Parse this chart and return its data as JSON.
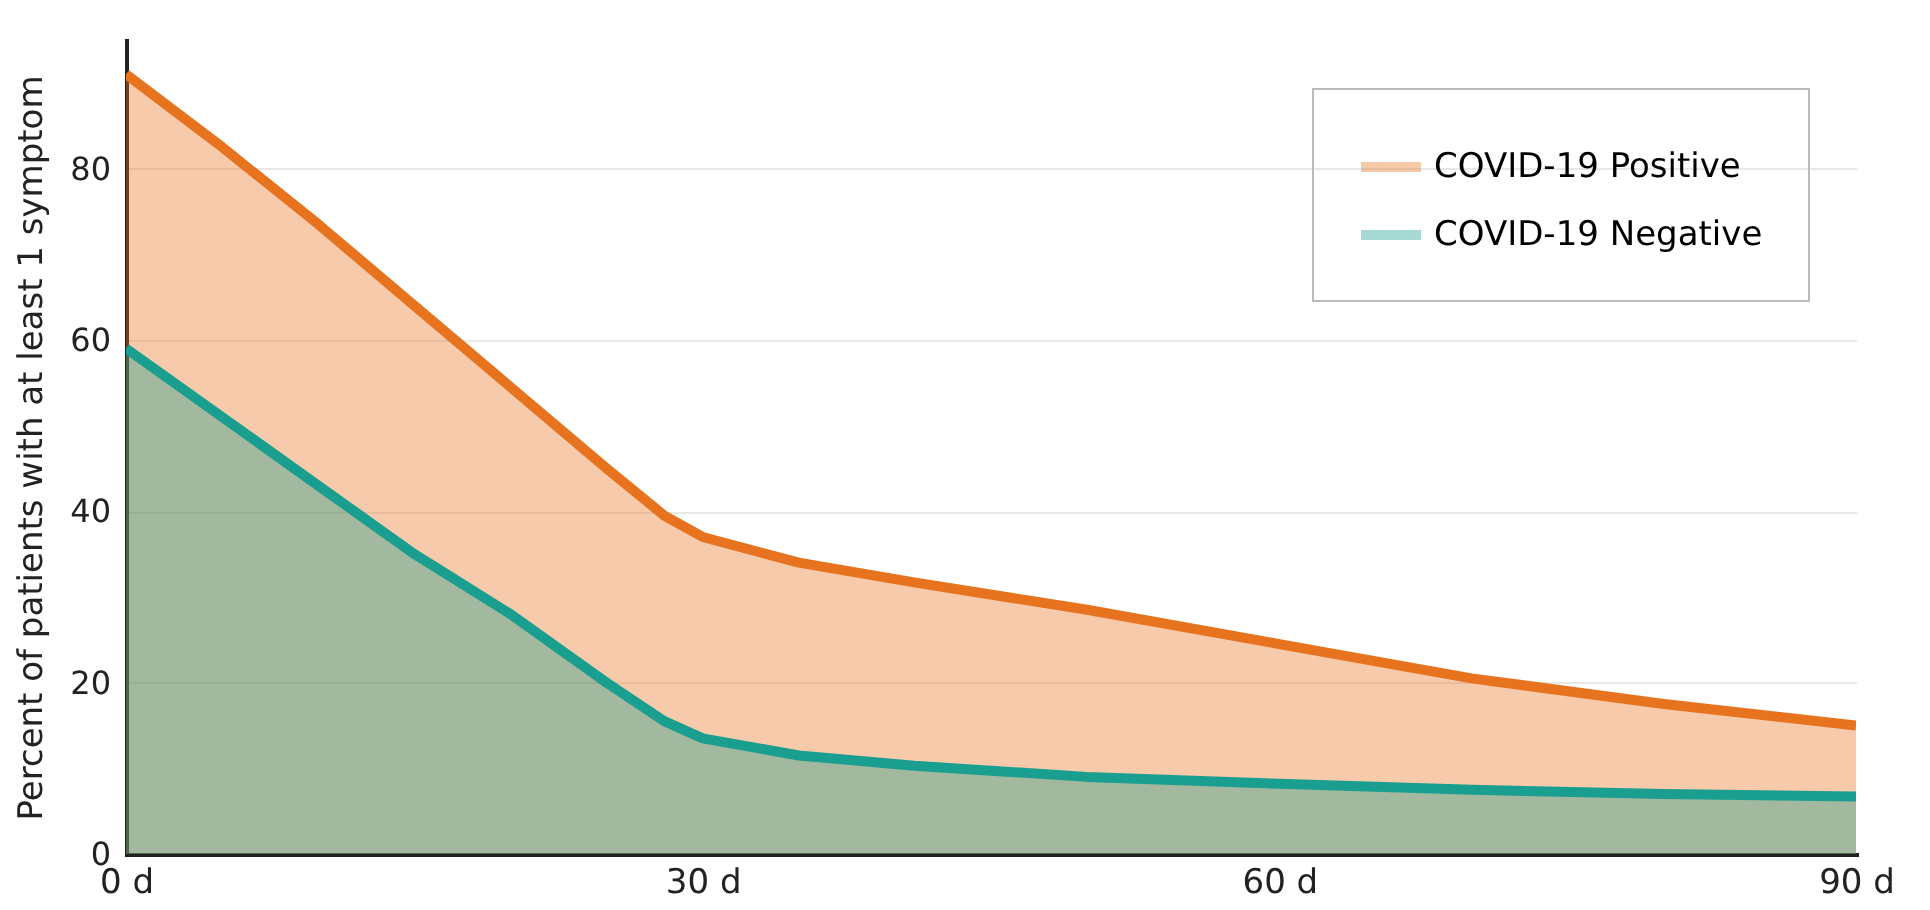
{
  "chart_data": {
    "type": "area",
    "ylabel": "Percent of patients with at least 1 symptom",
    "x": [
      0,
      5,
      10,
      15,
      20,
      25,
      28,
      30,
      35,
      41,
      50,
      60,
      70,
      80,
      90
    ],
    "series": [
      {
        "name": "COVID-19 Positive",
        "color": "#e8731f",
        "values": [
          91,
          82.5,
          73.5,
          64,
          54.5,
          45,
          39.5,
          37,
          34,
          31.7,
          28.5,
          24.5,
          20.5,
          17.5,
          15
        ]
      },
      {
        "name": "COVID-19 Negative",
        "color": "#1a9e8f",
        "values": [
          59,
          51,
          43,
          35,
          28,
          20,
          15.5,
          13.5,
          11.5,
          10.3,
          9,
          8.2,
          7.5,
          7,
          6.7
        ]
      }
    ],
    "xlim": [
      0,
      90
    ],
    "xticks": [
      {
        "value": 0,
        "label": "0 d"
      },
      {
        "value": 30,
        "label": "30 d"
      },
      {
        "value": 60,
        "label": "60 d"
      },
      {
        "value": 90,
        "label": "90 d"
      }
    ],
    "ylim": [
      0,
      95
    ],
    "yticks": [
      0,
      20,
      40,
      60,
      80
    ],
    "grid": "y",
    "legend": "top right"
  }
}
